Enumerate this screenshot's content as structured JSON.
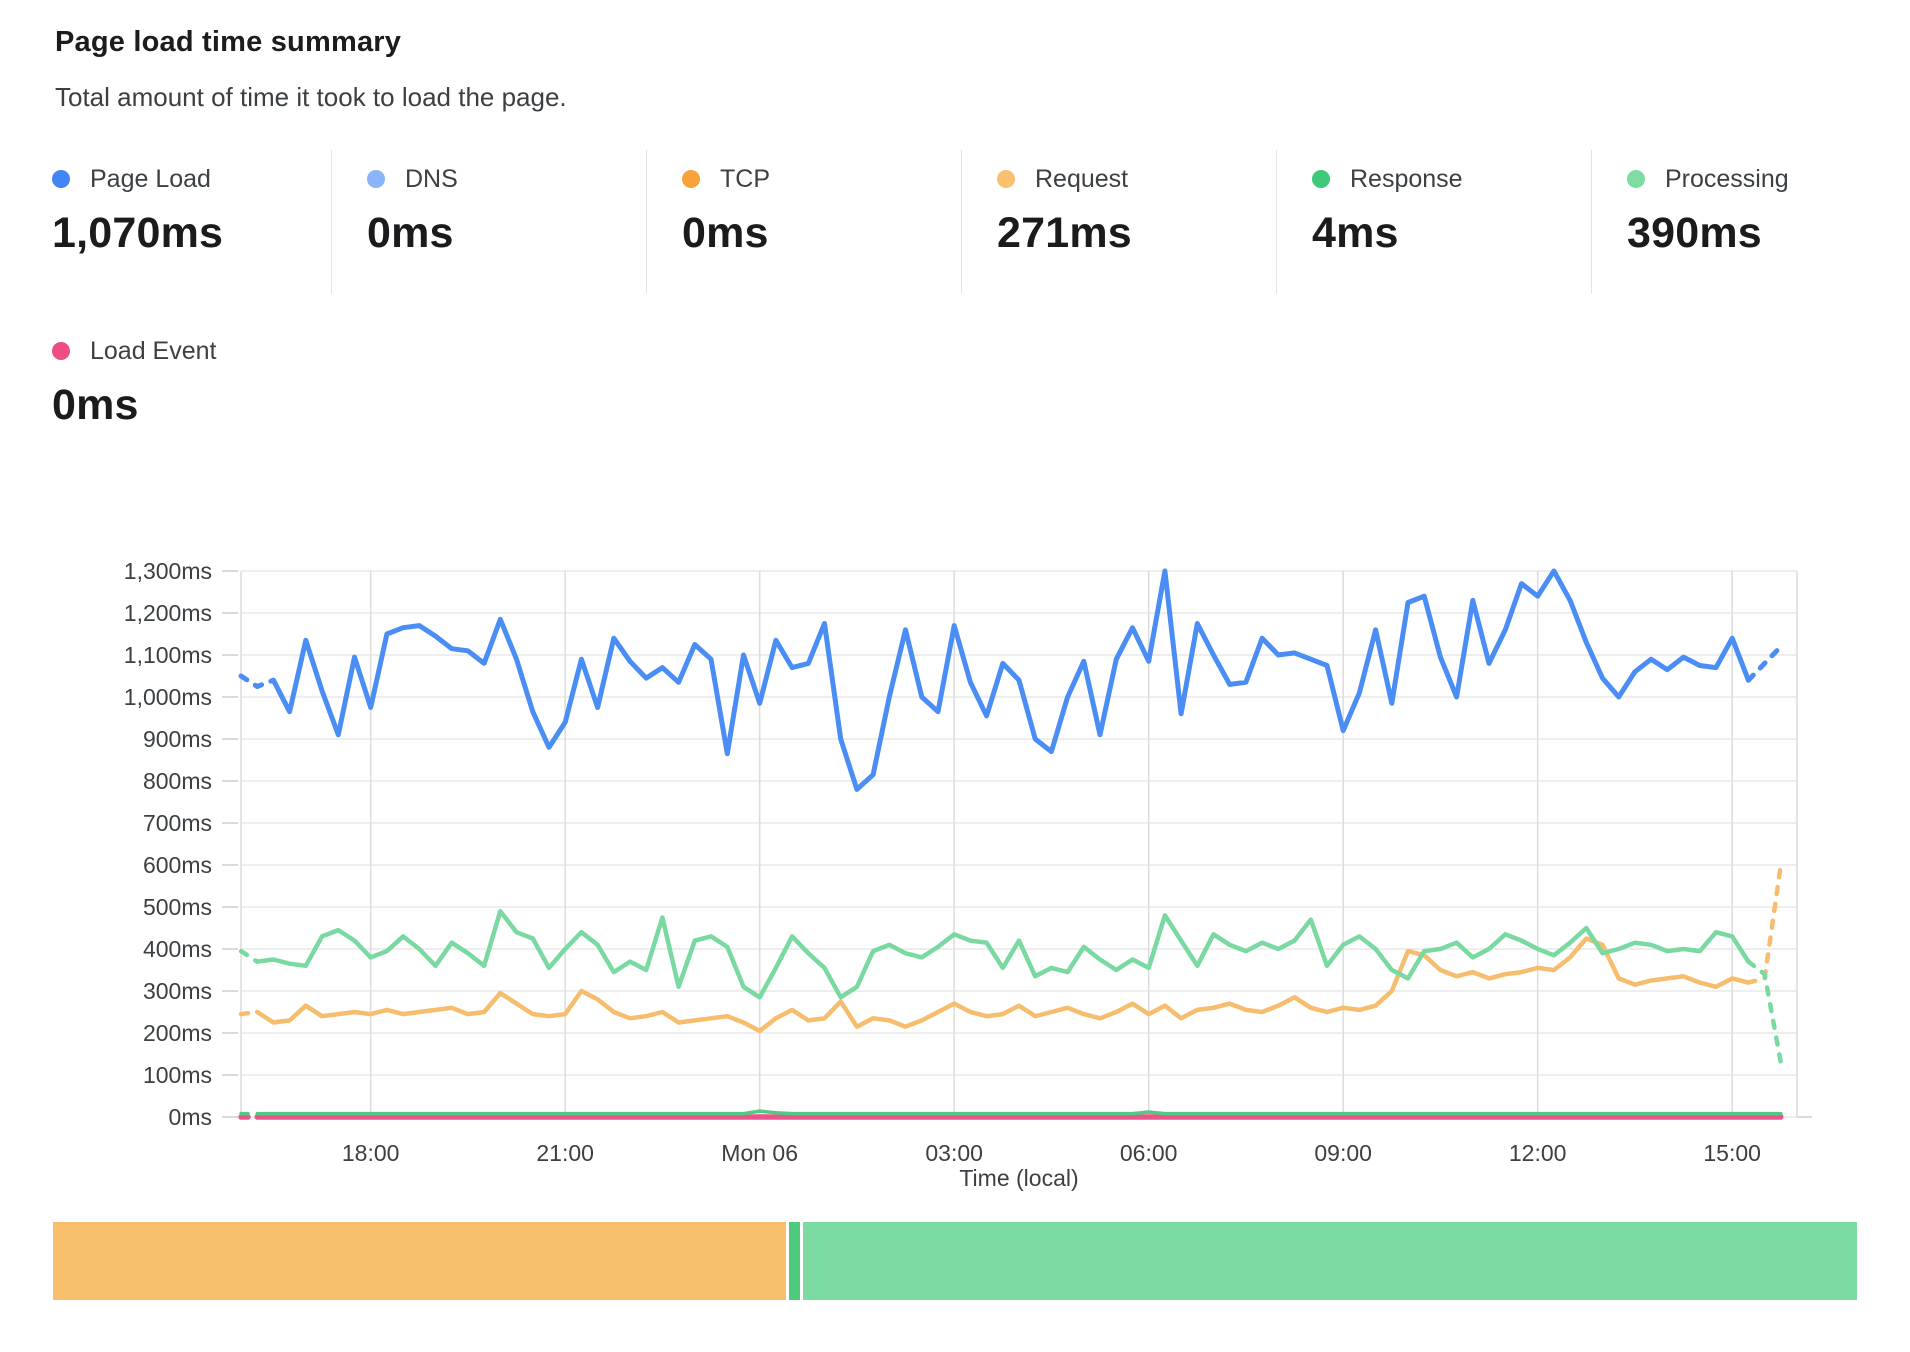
{
  "header": {
    "title": "Page load time summary",
    "subtitle": "Total amount of time it took to load the page."
  },
  "metrics": [
    {
      "label": "Page Load",
      "value": "1,070ms",
      "color": "#4285f4"
    },
    {
      "label": "DNS",
      "value": "0ms",
      "color": "#8ab4f8"
    },
    {
      "label": "TCP",
      "value": "0ms",
      "color": "#f5a33c"
    },
    {
      "label": "Request",
      "value": "271ms",
      "color": "#f8c06f"
    },
    {
      "label": "Response",
      "value": "4ms",
      "color": "#3ec878"
    },
    {
      "label": "Processing",
      "value": "390ms",
      "color": "#7ddca2"
    }
  ],
  "load_event": {
    "label": "Load Event",
    "value": "0ms",
    "color": "#ee4c82"
  },
  "chart_data": {
    "type": "line",
    "xlabel": "Time (local)",
    "y_axis": {
      "min": 0,
      "max": 1300,
      "step": 100,
      "unit": "ms"
    },
    "x_axis": {
      "span_hours": 24,
      "points_per_hour": 4,
      "ticks": [
        {
          "label": "18:00",
          "hours": 2
        },
        {
          "label": "21:00",
          "hours": 5
        },
        {
          "label": "Mon 06",
          "hours": 8
        },
        {
          "label": "03:00",
          "hours": 11
        },
        {
          "label": "06:00",
          "hours": 14
        },
        {
          "label": "09:00",
          "hours": 17
        },
        {
          "label": "12:00",
          "hours": 20
        },
        {
          "label": "15:00",
          "hours": 23
        }
      ]
    },
    "grid": true,
    "legend_position": "top",
    "series": [
      {
        "name": "Load Event",
        "color": "#e9558b",
        "width": 5.5,
        "dash_head": 1,
        "dash_tail": 0,
        "values": [
          0,
          0,
          0,
          0,
          0,
          0,
          0,
          0,
          0,
          0,
          0,
          0,
          0,
          0,
          0,
          0,
          0,
          0,
          0,
          0,
          0,
          0,
          0,
          0,
          0,
          0,
          0,
          0,
          0,
          0,
          0,
          0,
          0,
          0,
          0,
          0,
          0,
          0,
          0,
          0,
          0,
          0,
          0,
          0,
          0,
          0,
          0,
          0,
          0,
          0,
          0,
          0,
          0,
          0,
          0,
          0,
          0,
          0,
          0,
          0,
          0,
          0,
          0,
          0,
          0,
          0,
          0,
          0,
          0,
          0,
          0,
          0,
          0,
          0,
          0,
          0,
          0,
          0,
          0,
          0,
          0,
          0,
          0,
          0,
          0,
          0,
          0,
          0,
          0,
          0,
          0,
          0,
          0,
          0,
          0,
          0
        ]
      },
      {
        "name": "Response",
        "color": "#52c982",
        "width": 3.5,
        "dash_head": 1,
        "dash_tail": 0,
        "values": [
          8,
          8,
          8,
          8,
          8,
          8,
          8,
          8,
          8,
          8,
          8,
          8,
          8,
          8,
          8,
          8,
          8,
          8,
          8,
          8,
          8,
          8,
          8,
          8,
          8,
          8,
          8,
          8,
          8,
          8,
          8,
          8,
          14,
          10,
          8,
          8,
          8,
          8,
          8,
          8,
          8,
          8,
          8,
          8,
          8,
          8,
          8,
          8,
          8,
          8,
          8,
          8,
          8,
          8,
          8,
          8,
          12,
          8,
          8,
          8,
          8,
          8,
          8,
          8,
          8,
          8,
          8,
          8,
          8,
          8,
          8,
          8,
          8,
          8,
          8,
          8,
          8,
          8,
          8,
          8,
          8,
          8,
          8,
          8,
          8,
          8,
          8,
          8,
          8,
          8,
          8,
          8,
          8,
          8,
          8,
          8
        ]
      },
      {
        "name": "Request",
        "color": "#f6bd6e",
        "width": 4.5,
        "dash_head": 1,
        "dash_tail": 2,
        "values": [
          245,
          250,
          225,
          230,
          265,
          240,
          245,
          250,
          245,
          255,
          245,
          250,
          255,
          260,
          245,
          250,
          295,
          270,
          245,
          240,
          245,
          300,
          280,
          250,
          235,
          240,
          250,
          225,
          230,
          235,
          240,
          225,
          205,
          235,
          255,
          230,
          235,
          275,
          215,
          235,
          230,
          215,
          230,
          250,
          270,
          250,
          240,
          245,
          265,
          240,
          250,
          260,
          245,
          235,
          250,
          270,
          245,
          265,
          235,
          255,
          260,
          270,
          255,
          250,
          265,
          285,
          260,
          250,
          260,
          255,
          265,
          300,
          395,
          385,
          350,
          335,
          345,
          330,
          340,
          345,
          355,
          350,
          380,
          425,
          410,
          330,
          315,
          325,
          330,
          335,
          320,
          310,
          330,
          320,
          330,
          600
        ]
      },
      {
        "name": "Processing",
        "color": "#79d9a1",
        "width": 4.5,
        "dash_head": 1,
        "dash_tail": 2,
        "values": [
          395,
          370,
          375,
          365,
          360,
          430,
          445,
          420,
          380,
          395,
          430,
          400,
          360,
          415,
          390,
          360,
          490,
          440,
          425,
          355,
          400,
          440,
          410,
          345,
          370,
          350,
          475,
          310,
          420,
          430,
          405,
          310,
          285,
          355,
          430,
          390,
          355,
          285,
          310,
          395,
          410,
          390,
          380,
          405,
          435,
          420,
          415,
          355,
          420,
          335,
          355,
          345,
          405,
          375,
          350,
          375,
          355,
          480,
          420,
          360,
          435,
          410,
          395,
          415,
          400,
          420,
          470,
          360,
          410,
          430,
          400,
          350,
          330,
          395,
          400,
          415,
          380,
          400,
          435,
          420,
          400,
          385,
          415,
          450,
          390,
          400,
          415,
          410,
          395,
          400,
          395,
          440,
          430,
          370,
          340,
          130
        ]
      },
      {
        "name": "Page Load",
        "color": "#4a8df5",
        "width": 5,
        "dash_head": 2,
        "dash_tail": 2,
        "values": [
          1050,
          1025,
          1040,
          965,
          1135,
          1015,
          910,
          1095,
          975,
          1150,
          1165,
          1170,
          1145,
          1115,
          1110,
          1080,
          1185,
          1090,
          965,
          880,
          940,
          1090,
          975,
          1140,
          1085,
          1045,
          1070,
          1035,
          1125,
          1090,
          865,
          1100,
          985,
          1135,
          1070,
          1080,
          1175,
          900,
          780,
          815,
          1000,
          1160,
          1000,
          965,
          1170,
          1035,
          955,
          1080,
          1040,
          900,
          870,
          1000,
          1085,
          910,
          1090,
          1165,
          1085,
          1300,
          960,
          1175,
          1100,
          1030,
          1035,
          1140,
          1100,
          1105,
          1090,
          1075,
          920,
          1010,
          1160,
          985,
          1225,
          1240,
          1095,
          1000,
          1230,
          1080,
          1160,
          1270,
          1240,
          1300,
          1230,
          1130,
          1045,
          1000,
          1060,
          1090,
          1065,
          1095,
          1075,
          1070,
          1140,
          1040,
          1080,
          1120
        ]
      }
    ]
  },
  "stacked_bar": {
    "segments": [
      {
        "name": "Request",
        "value": 271,
        "color": "#f8bf6c"
      },
      {
        "name": "Response",
        "value": 4,
        "color": "#4dca7c"
      },
      {
        "name": "Processing",
        "value": 390,
        "color": "#7cdba0"
      }
    ]
  }
}
